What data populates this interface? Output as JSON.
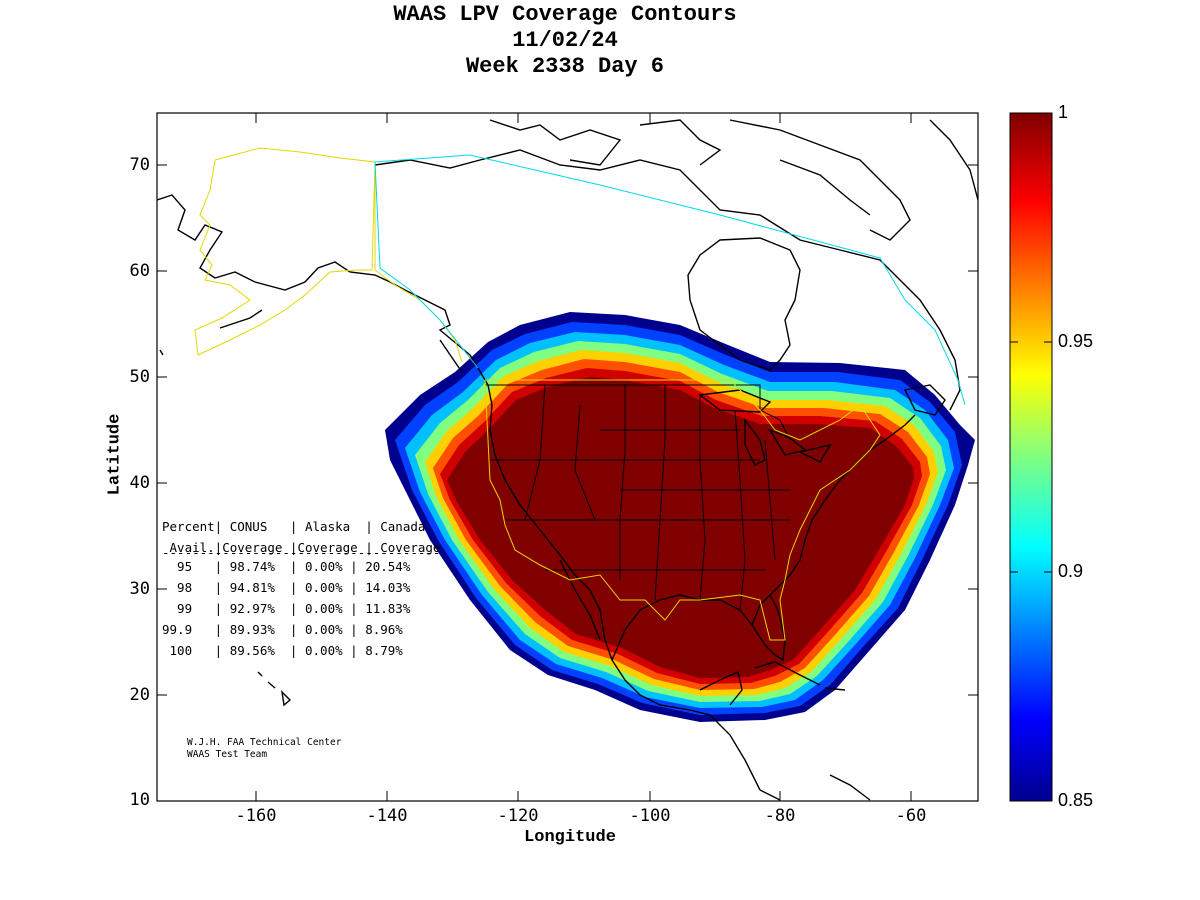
{
  "title": {
    "line1": "WAAS LPV Coverage Contours",
    "line2": "11/02/24",
    "line3": "Week 2338 Day 6"
  },
  "axes": {
    "xlabel": "Longitude",
    "ylabel": "Latitude",
    "xticks": [
      "-160",
      "-140",
      "-120",
      "-100",
      "-80",
      "-60"
    ],
    "yticks": [
      "70",
      "60",
      "50",
      "40",
      "30",
      "20",
      "10"
    ],
    "xlim": [
      -175,
      -50
    ],
    "ylim": [
      10,
      75
    ]
  },
  "colorbar": {
    "ticks": [
      "1",
      "0.95",
      "0.9",
      "0.85"
    ],
    "range": [
      0.85,
      1
    ],
    "colormap": "jet"
  },
  "stats_table": {
    "header1": "Percent| CONUS   | Alaska  | Canada",
    "header2": " Avail.|Coverage |Coverage | Coverage",
    "rule": "-------------------------------------",
    "rows": [
      "  95   | 98.74%  | 0.00% | 20.54%",
      "  98   | 94.81%  | 0.00% | 14.03%",
      "  99   | 92.97%  | 0.00% | 11.83%",
      "99.9   | 89.93%  | 0.00% | 8.96%",
      " 100   | 89.56%  | 0.00% | 8.79%"
    ]
  },
  "credit": {
    "line1": "W.J.H. FAA Technical Center",
    "line2": "WAAS Test Team"
  },
  "colors": {
    "full_coverage": "#800000",
    "alaska_boundary": "#ffff00",
    "canada_boundary": "#00e5ee",
    "conus_boundary": "#ffff00",
    "coastline": "#000000"
  }
}
